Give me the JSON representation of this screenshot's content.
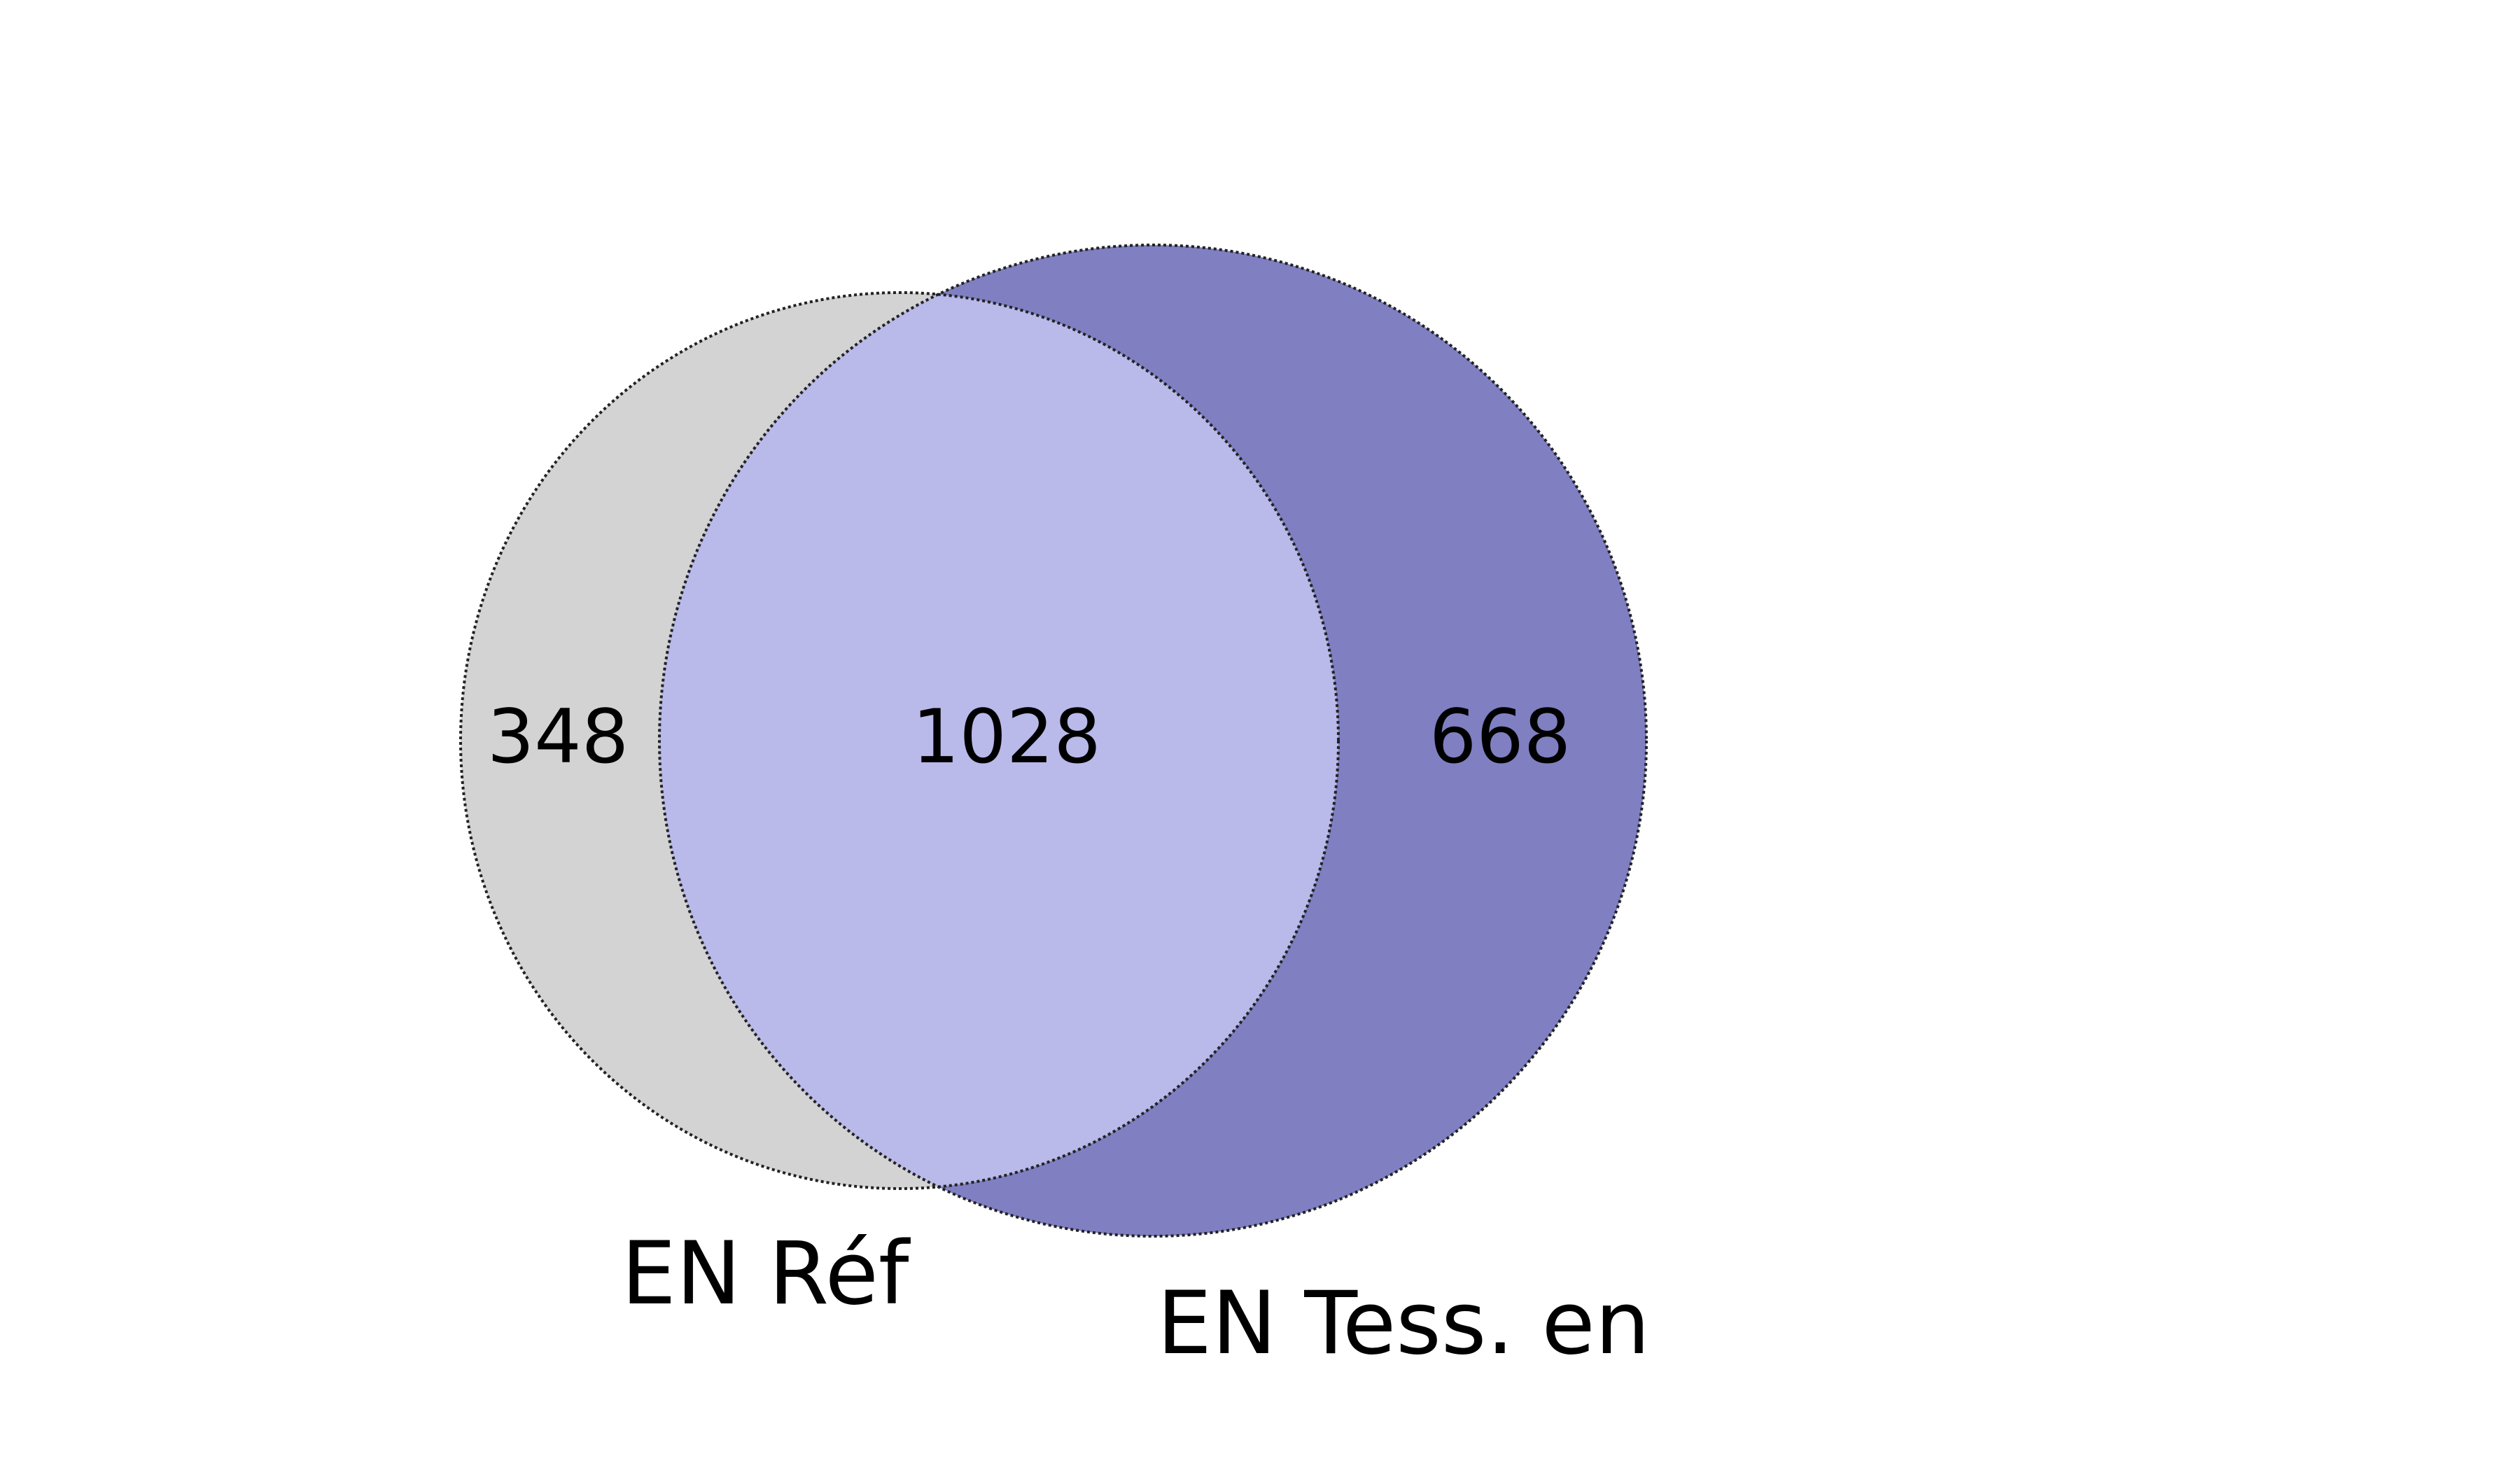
{
  "diagram": {
    "type": "venn-2",
    "sets": [
      {
        "name": "EN Réf",
        "only_count": "348",
        "color": "#d3d3d3"
      },
      {
        "name": "EN Tess. en",
        "only_count": "668",
        "color": "#7f7fc2"
      }
    ],
    "intersection_count": "1028",
    "intersection_color": "#b9b9ea",
    "outline_color": "#222222"
  }
}
